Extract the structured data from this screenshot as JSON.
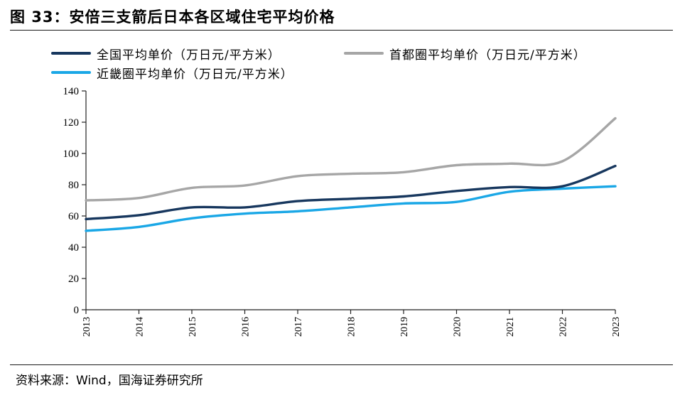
{
  "figure": {
    "title": "图 33：安倍三支箭后日本各区域住宅平均价格",
    "source": "资料来源：Wind，国海证券研究所"
  },
  "colors": {
    "national": "#17375e",
    "capital": "#a6a6a6",
    "kinki": "#1aa7e6",
    "axis": "#222222"
  },
  "chart_data": {
    "type": "line",
    "x": [
      "2013",
      "2014",
      "2015",
      "2016",
      "2017",
      "2018",
      "2019",
      "2020",
      "2021",
      "2022",
      "2023"
    ],
    "ylim": [
      0,
      140
    ],
    "yticks": [
      0,
      20,
      40,
      60,
      80,
      100,
      120,
      140
    ],
    "grid": false,
    "legend_position": "top",
    "series": [
      {
        "key": "national",
        "name": "全国平均单价（万日元/平方米）",
        "values": [
          58,
          60.5,
          65.5,
          65.5,
          69.5,
          71,
          72.5,
          76,
          78.5,
          79,
          92
        ]
      },
      {
        "key": "capital",
        "name": "首都圈平均单价（万日元/平方米）",
        "values": [
          70,
          71.5,
          78,
          79.5,
          85.5,
          87,
          88,
          92.5,
          93.5,
          95,
          122.5
        ]
      },
      {
        "key": "kinki",
        "name": "近畿圈平均单价（万日元/平方米）",
        "values": [
          50.5,
          53,
          58.5,
          61.5,
          63,
          65.5,
          68,
          69,
          75.5,
          77.5,
          79
        ]
      }
    ]
  }
}
